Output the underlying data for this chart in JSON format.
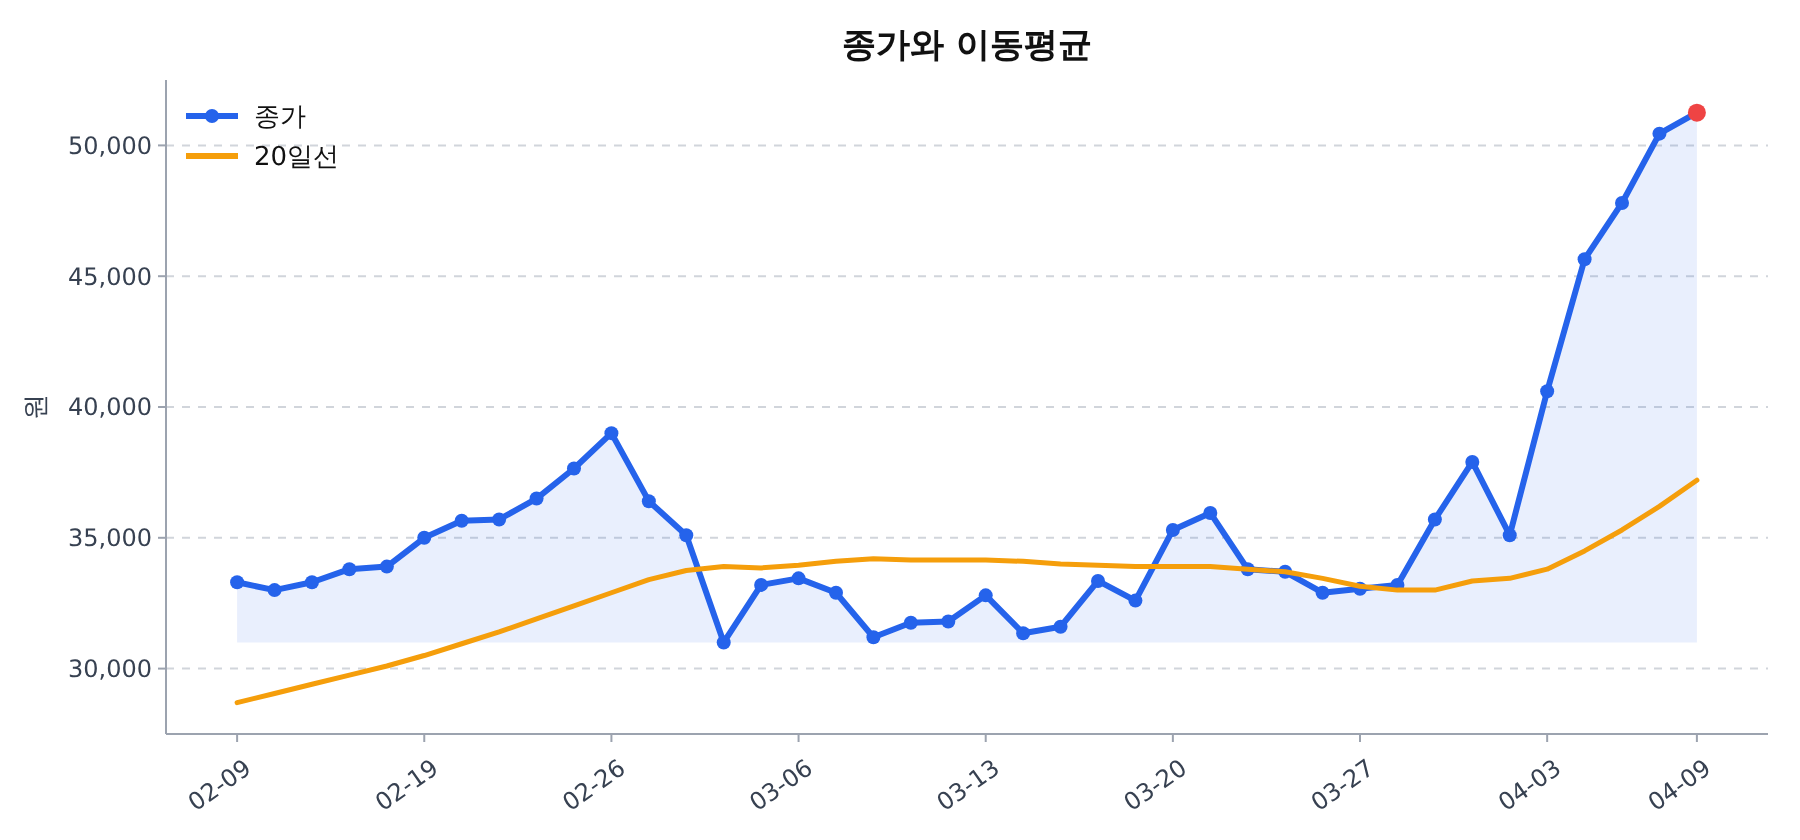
{
  "chart_data": {
    "type": "line",
    "title": "종가와 이동평균",
    "ylabel": "원",
    "categories": [
      "02-09",
      null,
      null,
      null,
      null,
      "02-19",
      null,
      null,
      null,
      null,
      "02-26",
      null,
      null,
      null,
      null,
      "03-06",
      null,
      null,
      null,
      null,
      "03-13",
      null,
      null,
      null,
      null,
      "03-20",
      null,
      null,
      null,
      null,
      "03-27",
      null,
      null,
      null,
      null,
      "04-03",
      null,
      null,
      null,
      "04-09"
    ],
    "series": [
      {
        "name": "종가",
        "type": "area",
        "color": "#2563eb",
        "marker": "circle",
        "colors": [
          "#2563eb",
          "#2563eb",
          "#2563eb",
          "#2563eb",
          "#2563eb",
          "#2563eb",
          "#2563eb",
          "#2563eb",
          "#2563eb",
          "#2563eb",
          "#2563eb",
          "#2563eb",
          "#2563eb",
          "#2563eb",
          "#2563eb",
          "#2563eb",
          "#2563eb",
          "#2563eb",
          "#2563eb",
          "#2563eb",
          "#2563eb",
          "#2563eb",
          "#2563eb",
          "#2563eb",
          "#2563eb",
          "#2563eb",
          "#2563eb",
          "#2563eb",
          "#2563eb",
          "#2563eb",
          "#2563eb",
          "#2563eb",
          "#2563eb",
          "#2563eb",
          "#2563eb",
          "#2563eb",
          "#2563eb",
          "#2563eb",
          "#2563eb",
          "#ef4444"
        ],
        "values": [
          33300,
          33000,
          33300,
          33800,
          33900,
          35000,
          35650,
          35700,
          36500,
          37650,
          39000,
          36400,
          35100,
          31000,
          33200,
          33450,
          32900,
          31200,
          31750,
          31800,
          32800,
          31350,
          31600,
          33350,
          32600,
          35300,
          35950,
          33800,
          33700,
          32900,
          33050,
          33200,
          35700,
          37900,
          35100,
          40600,
          45650,
          47800,
          50450,
          51250
        ]
      },
      {
        "name": "20일선",
        "color": "#f59e0b",
        "marker": "none",
        "values": [
          28700,
          29050,
          29400,
          29750,
          30100,
          30500,
          30950,
          31400,
          31900,
          32400,
          32900,
          33400,
          33750,
          33900,
          33850,
          33950,
          34100,
          34200,
          34150,
          34150,
          34150,
          34100,
          34000,
          33950,
          33900,
          33900,
          33900,
          33800,
          33700,
          33450,
          33150,
          33000,
          33000,
          33350,
          33450,
          33800,
          34500,
          35300,
          36200,
          37200
        ]
      }
    ],
    "ylim": [
      27500,
      52500
    ],
    "yticks": [
      {
        "value": 30000,
        "label": "30,000"
      },
      {
        "value": 35000,
        "label": "35,000"
      },
      {
        "value": 40000,
        "label": "40,000"
      },
      {
        "value": 45000,
        "label": "45,000"
      },
      {
        "value": 50000,
        "label": "50,000"
      }
    ],
    "grid": "y",
    "legend": "top left"
  }
}
